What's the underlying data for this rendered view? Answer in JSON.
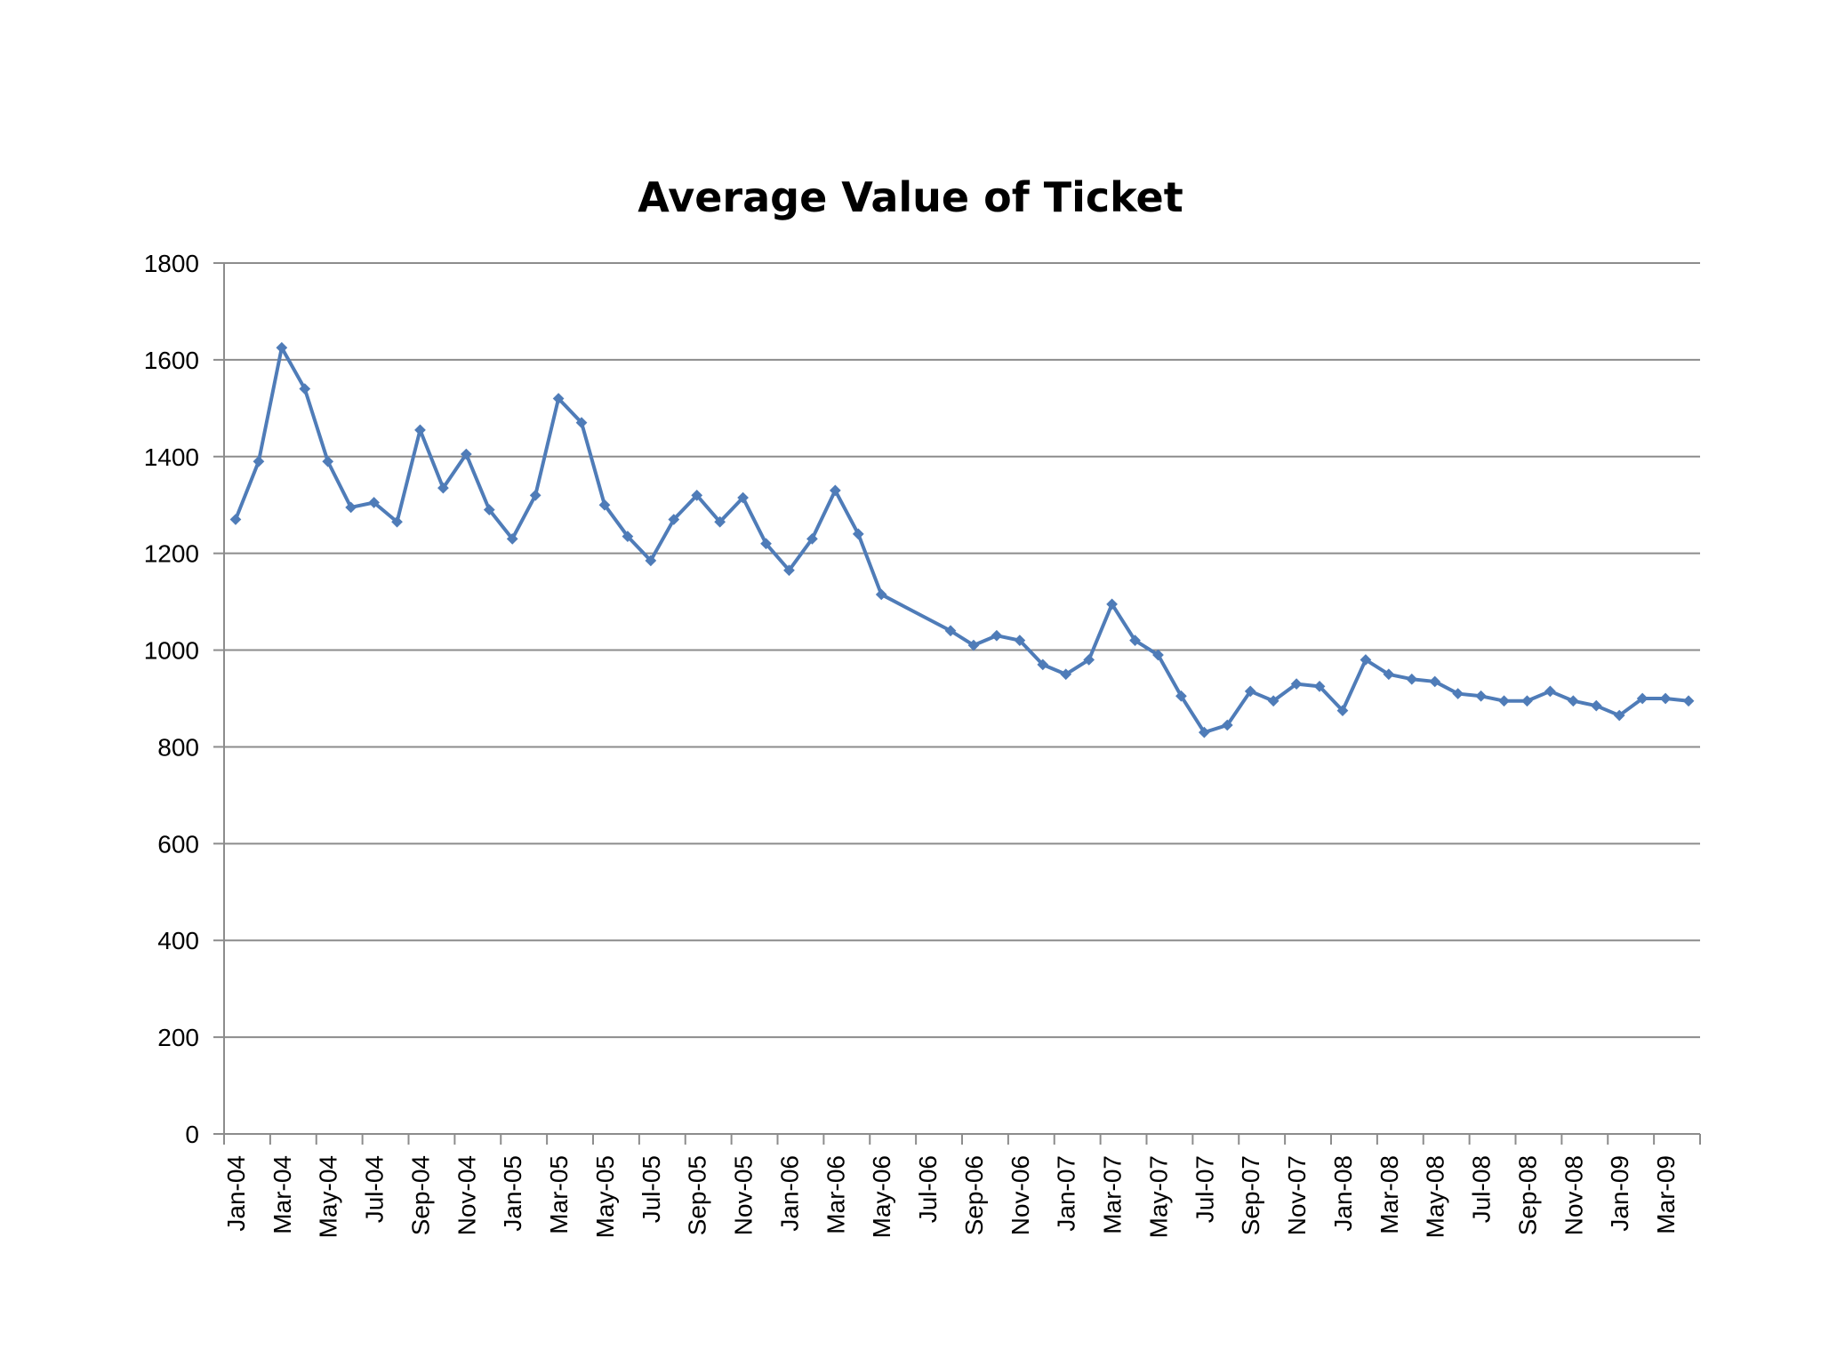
{
  "chart_data": {
    "type": "line",
    "title": "Average Value of Ticket",
    "xlabel": "",
    "ylabel": "",
    "ylim": [
      0,
      1800
    ],
    "yticks": [
      0,
      200,
      400,
      600,
      800,
      1000,
      1200,
      1400,
      1600,
      1800
    ],
    "grid": true,
    "legend": "none",
    "line_color": "#4F7CB8",
    "x_tick_labels": [
      "Jan-04",
      "Mar-04",
      "May-04",
      "Jul-04",
      "Sep-04",
      "Nov-04",
      "Jan-05",
      "Mar-05",
      "May-05",
      "Jul-05",
      "Sep-05",
      "Nov-05",
      "Jan-06",
      "Mar-06",
      "May-06",
      "Jul-06",
      "Sep-06",
      "Nov-06",
      "Jan-07",
      "Mar-07",
      "May-07",
      "Jul-07",
      "Sep-07",
      "Nov-07",
      "Jan-08",
      "Mar-08",
      "May-08",
      "Jul-08",
      "Sep-08",
      "Nov-08",
      "Jan-09",
      "Mar-09"
    ],
    "series": [
      {
        "name": "Average Value of Ticket",
        "points": [
          {
            "x": "Jan-04",
            "y": 1270
          },
          {
            "x": "Feb-04",
            "y": 1390
          },
          {
            "x": "Mar-04",
            "y": 1625
          },
          {
            "x": "Apr-04",
            "y": 1540
          },
          {
            "x": "May-04",
            "y": 1390
          },
          {
            "x": "Jun-04",
            "y": 1295
          },
          {
            "x": "Jul-04",
            "y": 1305
          },
          {
            "x": "Aug-04",
            "y": 1265
          },
          {
            "x": "Sep-04",
            "y": 1455
          },
          {
            "x": "Oct-04",
            "y": 1335
          },
          {
            "x": "Nov-04",
            "y": 1405
          },
          {
            "x": "Dec-04",
            "y": 1290
          },
          {
            "x": "Jan-05",
            "y": 1230
          },
          {
            "x": "Feb-05",
            "y": 1320
          },
          {
            "x": "Mar-05",
            "y": 1520
          },
          {
            "x": "Apr-05",
            "y": 1470
          },
          {
            "x": "May-05",
            "y": 1300
          },
          {
            "x": "Jun-05",
            "y": 1235
          },
          {
            "x": "Jul-05",
            "y": 1185
          },
          {
            "x": "Aug-05",
            "y": 1270
          },
          {
            "x": "Sep-05",
            "y": 1320
          },
          {
            "x": "Oct-05",
            "y": 1265
          },
          {
            "x": "Nov-05",
            "y": 1315
          },
          {
            "x": "Dec-05",
            "y": 1220
          },
          {
            "x": "Jan-06",
            "y": 1165
          },
          {
            "x": "Feb-06",
            "y": 1230
          },
          {
            "x": "Mar-06",
            "y": 1330
          },
          {
            "x": "Apr-06",
            "y": 1240
          },
          {
            "x": "May-06",
            "y": 1115
          },
          {
            "x": "Aug-06",
            "y": 1040
          },
          {
            "x": "Sep-06",
            "y": 1010
          },
          {
            "x": "Oct-06",
            "y": 1030
          },
          {
            "x": "Nov-06",
            "y": 1020
          },
          {
            "x": "Dec-06",
            "y": 970
          },
          {
            "x": "Jan-07",
            "y": 950
          },
          {
            "x": "Feb-07",
            "y": 980
          },
          {
            "x": "Mar-07",
            "y": 1095
          },
          {
            "x": "Apr-07",
            "y": 1020
          },
          {
            "x": "May-07",
            "y": 990
          },
          {
            "x": "Jun-07",
            "y": 905
          },
          {
            "x": "Jul-07",
            "y": 830
          },
          {
            "x": "Aug-07",
            "y": 845
          },
          {
            "x": "Sep-07",
            "y": 915
          },
          {
            "x": "Oct-07",
            "y": 895
          },
          {
            "x": "Nov-07",
            "y": 930
          },
          {
            "x": "Dec-07",
            "y": 925
          },
          {
            "x": "Jan-08",
            "y": 875
          },
          {
            "x": "Feb-08",
            "y": 980
          },
          {
            "x": "Mar-08",
            "y": 950
          },
          {
            "x": "Apr-08",
            "y": 940
          },
          {
            "x": "May-08",
            "y": 935
          },
          {
            "x": "Jun-08",
            "y": 910
          },
          {
            "x": "Jul-08",
            "y": 905
          },
          {
            "x": "Aug-08",
            "y": 895
          },
          {
            "x": "Sep-08",
            "y": 895
          },
          {
            "x": "Oct-08",
            "y": 915
          },
          {
            "x": "Nov-08",
            "y": 895
          },
          {
            "x": "Dec-08",
            "y": 885
          },
          {
            "x": "Jan-09",
            "y": 865
          },
          {
            "x": "Feb-09",
            "y": 900
          },
          {
            "x": "Mar-09",
            "y": 900
          },
          {
            "x": "Apr-09",
            "y": 895
          }
        ]
      }
    ]
  }
}
